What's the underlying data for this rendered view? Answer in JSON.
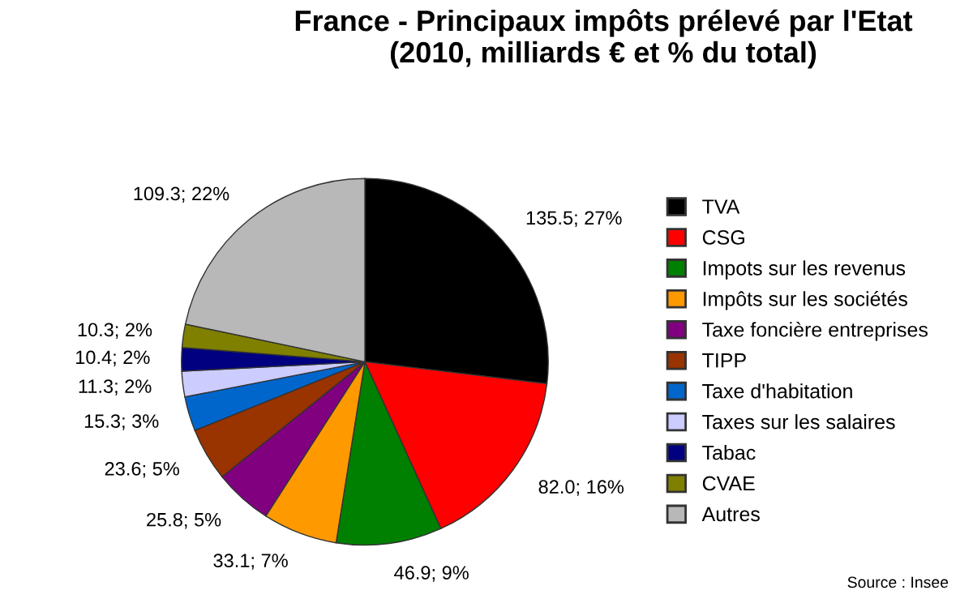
{
  "chart_data": {
    "type": "pie",
    "title": "France - Principaux impôts prélevé par l'Etat\n(2010, milliards € et % du total)",
    "categories": [
      "TVA",
      "CSG",
      "Impots sur les revenus",
      "Impôts sur les sociétés",
      "Taxe foncière entreprises",
      "TIPP",
      "Taxe d'habitation",
      "Taxes sur les salaires",
      "Tabac",
      "CVAE",
      "Autres"
    ],
    "values": [
      135.5,
      82.0,
      46.9,
      33.1,
      25.8,
      23.6,
      15.3,
      11.3,
      10.4,
      10.3,
      109.3
    ],
    "value_labels": [
      "135.5; 27%",
      "82.0; 16%",
      "46.9; 9%",
      "33.1; 7%",
      "25.8; 5%",
      "23.6; 5%",
      "15.3; 3%",
      "11.3; 2%",
      "10.4; 2%",
      "10.3; 2%",
      "109.3; 22%"
    ],
    "colors": [
      "#000000",
      "#ff0000",
      "#008000",
      "#ff9900",
      "#800080",
      "#993300",
      "#0066cc",
      "#ccccff",
      "#000080",
      "#808000",
      "#b8b8b8"
    ],
    "legend": "right",
    "annotations": [
      "Source : Insee"
    ]
  }
}
